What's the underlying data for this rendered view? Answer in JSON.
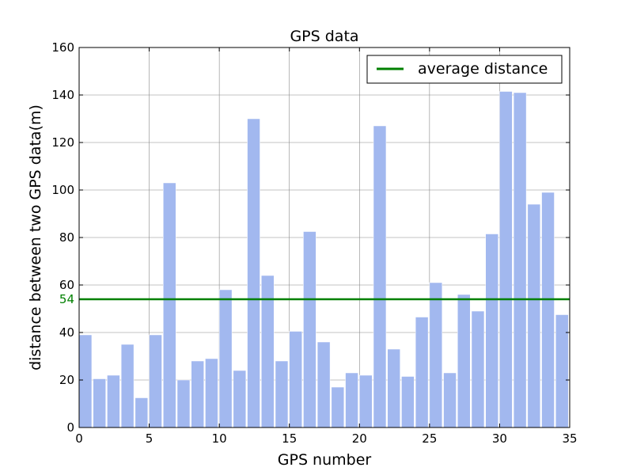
{
  "chart_data": {
    "type": "bar",
    "title": "GPS data",
    "xlabel": "GPS number",
    "ylabel": "distance between two GPS data(m)",
    "xlim": [
      0,
      35
    ],
    "ylim": [
      0,
      160
    ],
    "xticks": [
      0,
      5,
      10,
      15,
      20,
      25,
      30,
      35
    ],
    "yticks": [
      0,
      20,
      40,
      60,
      80,
      100,
      120,
      140,
      160
    ],
    "grid": true,
    "legend_position": "top-right",
    "bar_color": "#a2b8ef",
    "bar_width": 0.9,
    "x": [
      0,
      1,
      2,
      3,
      4,
      5,
      6,
      7,
      8,
      9,
      10,
      11,
      12,
      13,
      14,
      15,
      16,
      17,
      18,
      19,
      20,
      21,
      22,
      23,
      24,
      25,
      26,
      27,
      28,
      29,
      30,
      31,
      32,
      33,
      34
    ],
    "values": [
      39,
      20.5,
      22,
      35,
      12.5,
      39,
      103,
      20,
      28,
      29,
      58,
      24,
      130,
      64,
      28,
      40.5,
      82.5,
      36,
      17,
      23,
      22,
      127,
      33,
      21.5,
      46.5,
      61,
      23,
      56,
      49,
      81.5,
      141.5,
      141,
      94,
      99,
      47.5
    ],
    "average": {
      "name": "average distance",
      "value": 54,
      "label": "54",
      "color": "#008000"
    }
  }
}
